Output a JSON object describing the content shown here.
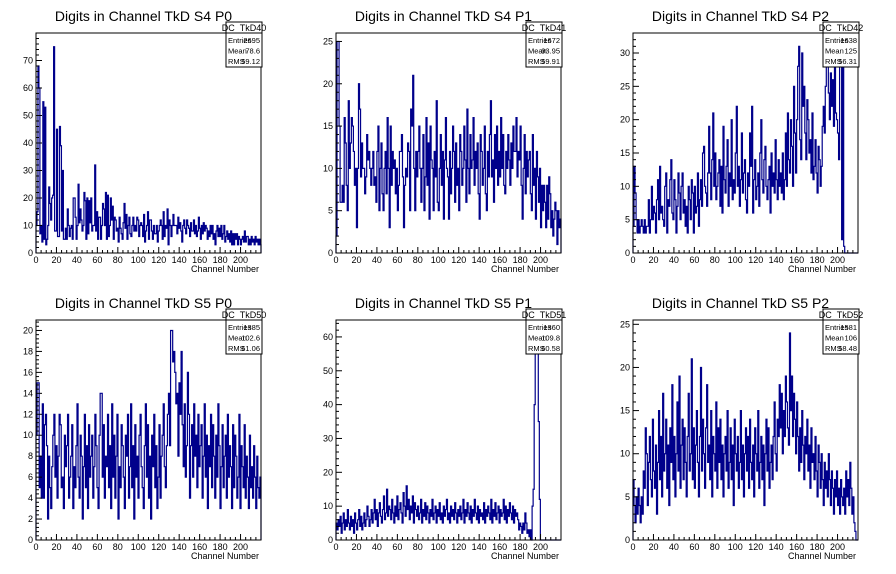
{
  "chart_data": [
    {
      "type": "histogram",
      "title": "Digits in Channel TkD S4 P0",
      "xlabel": "Channel Number",
      "xlim": [
        0,
        220
      ],
      "ylim": [
        0,
        80
      ],
      "xticks": [
        0,
        20,
        40,
        60,
        80,
        100,
        120,
        140,
        160,
        180,
        200
      ],
      "yticks": [
        0,
        10,
        20,
        30,
        40,
        50,
        60,
        70
      ],
      "color": "#00008b",
      "stats": {
        "name": "DC_TkD40",
        "entries": "2695",
        "mean": "78.6",
        "rms": "59.12"
      },
      "values": [
        10,
        15,
        68,
        60,
        7,
        10,
        4,
        55,
        5,
        53,
        3,
        5,
        10,
        24,
        18,
        12,
        20,
        21,
        75,
        8,
        8,
        45,
        6,
        6,
        46,
        39,
        8,
        30,
        5,
        5,
        9,
        5,
        16,
        10,
        6,
        9,
        10,
        5,
        20,
        20,
        13,
        5,
        10,
        25,
        11,
        16,
        12,
        8,
        10,
        22,
        19,
        5,
        20,
        7,
        19,
        11,
        20,
        8,
        10,
        10,
        32,
        8,
        15,
        5,
        13,
        13,
        5,
        10,
        18,
        16,
        10,
        22,
        5,
        21,
        6,
        10,
        20,
        12,
        17,
        5,
        13,
        12,
        8,
        9,
        4,
        13,
        9,
        7,
        5,
        11,
        18,
        9,
        14,
        5,
        10,
        13,
        7,
        6,
        10,
        13,
        8,
        10,
        8,
        13,
        12,
        6,
        10,
        11,
        10,
        6,
        14,
        4,
        8,
        10,
        15,
        5,
        12,
        12,
        8,
        5,
        10,
        7,
        7,
        10,
        4,
        8,
        10,
        12,
        10,
        5,
        15,
        6,
        10,
        9,
        16,
        3,
        12,
        10,
        6,
        10,
        14,
        10,
        10,
        10,
        7,
        13,
        9,
        11,
        8,
        4,
        10,
        12,
        9,
        7,
        12,
        10,
        9,
        6,
        11,
        8,
        8,
        12,
        7,
        10,
        6,
        8,
        13,
        9,
        5,
        10,
        7,
        11,
        8,
        10,
        9,
        5,
        8,
        6,
        10,
        7,
        10,
        5,
        7,
        3,
        8,
        10,
        6,
        9,
        6,
        10,
        5,
        7,
        10,
        4,
        6,
        8,
        5,
        7,
        4,
        8,
        3,
        7,
        3,
        7,
        5,
        7,
        3,
        6,
        5,
        3,
        5,
        6,
        4,
        8,
        4,
        6,
        6,
        3,
        5,
        3,
        6,
        4,
        5,
        3,
        6,
        4,
        5,
        3,
        5,
        3
      ]
    },
    {
      "type": "histogram",
      "title": "Digits in Channel TkD S4 P1",
      "xlabel": "Channel Number",
      "xlim": [
        0,
        220
      ],
      "ylim": [
        0,
        26
      ],
      "xticks": [
        0,
        20,
        40,
        60,
        80,
        100,
        120,
        140,
        160,
        180,
        200
      ],
      "yticks": [
        0,
        5,
        10,
        15,
        20,
        25
      ],
      "color": "#00008b",
      "stats": {
        "name": "DC_TkD41",
        "entries": "1672",
        "mean": "93.95",
        "rms": "59.91"
      },
      "values": [
        2,
        25,
        25,
        15,
        6,
        6,
        8,
        6,
        16,
        13,
        8,
        5,
        18,
        10,
        13,
        16,
        15,
        12,
        8,
        10,
        3,
        10,
        20,
        17,
        9,
        13,
        10,
        10,
        7,
        9,
        14,
        11,
        12,
        10,
        8,
        10,
        12,
        8,
        9,
        6,
        12,
        15,
        5,
        10,
        13,
        7,
        5,
        10,
        12,
        7,
        16,
        10,
        3,
        15,
        8,
        12,
        10,
        11,
        7,
        10,
        5,
        8,
        12,
        12,
        14,
        9,
        3,
        8,
        10,
        9,
        13,
        12,
        5,
        17,
        15,
        21,
        10,
        5,
        12,
        9,
        12,
        15,
        10,
        6,
        10,
        14,
        5,
        9,
        16,
        8,
        13,
        4,
        15,
        11,
        10,
        5,
        12,
        9,
        18,
        6,
        5,
        10,
        14,
        8,
        12,
        4,
        11,
        16,
        10,
        9,
        4,
        12,
        7,
        10,
        15,
        12,
        6,
        13,
        8,
        10,
        5,
        14,
        12,
        8,
        10,
        15,
        11,
        6,
        17,
        10,
        7,
        14,
        10,
        11,
        16,
        8,
        12,
        10,
        13,
        7,
        4,
        14,
        12,
        8,
        10,
        15,
        7,
        5,
        12,
        9,
        14,
        18,
        9,
        11,
        6,
        14,
        10,
        15,
        8,
        12,
        9,
        16,
        10,
        14,
        8,
        7,
        12,
        10,
        14,
        11,
        8,
        13,
        10,
        15,
        12,
        12,
        16,
        9,
        12,
        11,
        15,
        8,
        4,
        10,
        14,
        7,
        12,
        9,
        11,
        12,
        7,
        5,
        14,
        8,
        10,
        4,
        12,
        9,
        6,
        10,
        3,
        8,
        5,
        8,
        6,
        3,
        8,
        4,
        9,
        7,
        3,
        5,
        2,
        4,
        6,
        5,
        1,
        5,
        3,
        4
      ]
    },
    {
      "type": "histogram",
      "title": "Digits in Channel TkD S4 P2",
      "xlabel": "Channel Number",
      "xlim": [
        0,
        220
      ],
      "ylim": [
        0,
        33
      ],
      "xticks": [
        0,
        20,
        40,
        60,
        80,
        100,
        120,
        140,
        160,
        180,
        200
      ],
      "yticks": [
        0,
        5,
        10,
        15,
        20,
        25,
        30
      ],
      "color": "#00008b",
      "stats": {
        "name": "DC_TkD42",
        "entries": "1638",
        "mean": "125",
        "rms": "56.31"
      },
      "values": [
        4,
        13,
        9,
        5,
        3,
        5,
        3,
        4,
        5,
        4,
        3,
        5,
        3,
        4,
        4,
        8,
        3,
        5,
        10,
        5,
        7,
        6,
        3,
        8,
        11,
        5,
        13,
        6,
        7,
        5,
        4,
        10,
        12,
        3,
        8,
        7,
        11,
        14,
        6,
        5,
        11,
        8,
        3,
        7,
        12,
        9,
        5,
        10,
        12,
        6,
        8,
        4,
        7,
        3,
        10,
        8,
        5,
        11,
        9,
        3,
        10,
        6,
        7,
        12,
        4,
        8,
        11,
        7,
        15,
        16,
        10,
        9,
        7,
        12,
        19,
        12,
        8,
        14,
        21,
        10,
        15,
        8,
        10,
        12,
        14,
        7,
        13,
        6,
        19,
        11,
        9,
        13,
        17,
        7,
        12,
        10,
        20,
        8,
        11,
        9,
        15,
        22,
        10,
        13,
        7,
        11,
        18,
        9,
        12,
        14,
        8,
        6,
        12,
        10,
        18,
        13,
        22,
        6,
        11,
        14,
        8,
        10,
        12,
        7,
        15,
        20,
        11,
        9,
        14,
        16,
        10,
        8,
        11,
        13,
        6,
        15,
        10,
        12,
        9,
        17,
        11,
        8,
        14,
        10,
        12,
        9,
        15,
        8,
        11,
        18,
        10,
        21,
        14,
        12,
        20,
        16,
        10,
        25,
        18,
        12,
        20,
        28,
        31,
        17,
        14,
        30,
        22,
        25,
        18,
        14,
        23,
        20,
        15,
        17,
        12,
        21,
        11,
        13,
        17,
        12,
        9,
        16,
        14,
        10,
        13,
        19,
        22,
        18,
        25,
        31,
        30,
        24,
        20,
        27,
        22,
        26,
        19,
        30,
        21,
        20,
        18,
        14,
        28,
        31,
        2,
        30,
        1,
        0,
        0,
        0,
        0,
        0,
        0,
        0,
        0,
        0,
        0,
        0,
        0,
        0
      ]
    },
    {
      "type": "histogram",
      "title": "Digits in Channel TkD S5 P0",
      "xlabel": "Channel Number",
      "xlim": [
        0,
        220
      ],
      "ylim": [
        0,
        21
      ],
      "xticks": [
        0,
        20,
        40,
        60,
        80,
        100,
        120,
        140,
        160,
        180,
        200
      ],
      "yticks": [
        0,
        2,
        4,
        6,
        8,
        10,
        12,
        14,
        16,
        18,
        20
      ],
      "color": "#00008b",
      "stats": {
        "name": "DC_TkD50",
        "entries": "1385",
        "mean": "102.6",
        "rms": "61.06"
      },
      "values": [
        10,
        15,
        15,
        5,
        8,
        4,
        13,
        4,
        11,
        12,
        9,
        2,
        8,
        5,
        3,
        7,
        10,
        12,
        6,
        9,
        4,
        8,
        12,
        11,
        5,
        6,
        3,
        10,
        7,
        9,
        12,
        4,
        6,
        8,
        11,
        3,
        7,
        5,
        9,
        13,
        6,
        4,
        10,
        8,
        2,
        7,
        12,
        5,
        9,
        3,
        11,
        6,
        8,
        10,
        4,
        7,
        12,
        9,
        5,
        3,
        10,
        14,
        14,
        6,
        11,
        4,
        8,
        7,
        12,
        5,
        9,
        3,
        13,
        6,
        10,
        4,
        8,
        12,
        2,
        7,
        5,
        11,
        9,
        6,
        3,
        10,
        8,
        12,
        4,
        7,
        13,
        5,
        9,
        2,
        11,
        6,
        8,
        4,
        10,
        12,
        7,
        5,
        3,
        9,
        13,
        6,
        11,
        4,
        8,
        2,
        10,
        7,
        12,
        5,
        9,
        3,
        6,
        11,
        4,
        8,
        10,
        13,
        7,
        5,
        9,
        12,
        14,
        9,
        20,
        20,
        17,
        18,
        16,
        13,
        14,
        8,
        15,
        12,
        18,
        11,
        7,
        13,
        6,
        9,
        16,
        12,
        4,
        9,
        11,
        6,
        13,
        8,
        10,
        5,
        12,
        7,
        9,
        11,
        4,
        8,
        13,
        6,
        10,
        3,
        9,
        7,
        12,
        5,
        11,
        8,
        4,
        10,
        6,
        13,
        9,
        3,
        7,
        11,
        5,
        8,
        10,
        4,
        12,
        6,
        9,
        7,
        3,
        11,
        5,
        10,
        8,
        4,
        6,
        12,
        3,
        9,
        7,
        5,
        11,
        4,
        8,
        6,
        3,
        10,
        5,
        7,
        4,
        9,
        6,
        3,
        8,
        5,
        4,
        6
      ]
    },
    {
      "type": "histogram",
      "title": "Digits in Channel TkD S5 P1",
      "xlabel": "Channel Number",
      "xlim": [
        0,
        220
      ],
      "ylim": [
        0,
        65
      ],
      "xticks": [
        0,
        20,
        40,
        60,
        80,
        100,
        120,
        140,
        160,
        180,
        200
      ],
      "yticks": [
        0,
        10,
        20,
        30,
        40,
        50,
        60
      ],
      "color": "#00008b",
      "stats": {
        "name": "DC_TkD51",
        "entries": "1360",
        "mean": "109.8",
        "rms": "60.58"
      },
      "values": [
        5,
        3,
        6,
        4,
        7,
        2,
        5,
        8,
        3,
        6,
        4,
        9,
        5,
        3,
        7,
        4,
        6,
        2,
        8,
        5,
        3,
        6,
        9,
        4,
        7,
        3,
        5,
        8,
        4,
        6,
        10,
        7,
        4,
        6,
        9,
        5,
        8,
        12,
        6,
        9,
        4,
        8,
        11,
        7,
        5,
        9,
        13,
        6,
        8,
        15,
        7,
        10,
        9,
        6,
        12,
        8,
        5,
        10,
        7,
        13,
        6,
        9,
        11,
        8,
        5,
        14,
        10,
        7,
        16,
        9,
        12,
        6,
        10,
        8,
        13,
        5,
        11,
        9,
        7,
        10,
        6,
        8,
        12,
        5,
        9,
        7,
        11,
        6,
        10,
        8,
        5,
        9,
        7,
        12,
        6,
        8,
        10,
        5,
        9,
        7,
        11,
        6,
        8,
        5,
        10,
        7,
        9,
        12,
        6,
        8,
        5,
        10,
        7,
        9,
        6,
        11,
        8,
        5,
        9,
        7,
        10,
        6,
        8,
        12,
        5,
        9,
        7,
        11,
        8,
        6,
        10,
        5,
        9,
        7,
        12,
        8,
        6,
        10,
        5,
        9,
        7,
        8,
        6,
        11,
        5,
        9,
        7,
        10,
        8,
        6,
        12,
        5,
        9,
        7,
        11,
        6,
        8,
        10,
        5,
        9,
        7,
        8,
        12,
        6,
        10,
        5,
        9,
        7,
        11,
        8,
        6,
        10,
        5,
        9,
        7,
        8,
        6,
        3,
        5,
        4,
        2,
        5,
        3,
        8,
        5,
        2,
        3,
        1,
        3,
        0,
        10,
        15,
        40,
        56,
        63,
        55,
        35,
        12,
        0,
        0,
        0,
        0,
        0,
        0,
        0,
        0,
        0,
        0,
        0,
        0,
        0,
        0,
        0,
        0,
        0,
        0,
        0,
        0
      ]
    },
    {
      "type": "histogram",
      "title": "Digits in Channel TkD S5 P2",
      "xlabel": "Channel Number",
      "xlim": [
        0,
        220
      ],
      "ylim": [
        0,
        25.5
      ],
      "xticks": [
        0,
        20,
        40,
        60,
        80,
        100,
        120,
        140,
        160,
        180,
        200
      ],
      "yticks": [
        0,
        5,
        10,
        15,
        20,
        25
      ],
      "color": "#00008b",
      "stats": {
        "name": "DC_TkD52",
        "entries": "1581",
        "mean": "106",
        "rms": "58.48"
      },
      "values": [
        7,
        4,
        2,
        5,
        3,
        6,
        4,
        2,
        5,
        3,
        8,
        6,
        13,
        10,
        4,
        9,
        12,
        7,
        5,
        14,
        8,
        6,
        11,
        3,
        9,
        15,
        7,
        12,
        5,
        17,
        8,
        10,
        14,
        6,
        11,
        4,
        13,
        9,
        18,
        7,
        12,
        5,
        10,
        16,
        8,
        19,
        6,
        11,
        14,
        7,
        13,
        9,
        5,
        12,
        17,
        8,
        10,
        21,
        7,
        13,
        6,
        11,
        15,
        9,
        5,
        12,
        20,
        8,
        14,
        10,
        6,
        13,
        18,
        9,
        11,
        7,
        15,
        5,
        12,
        10,
        8,
        16,
        6,
        13,
        9,
        14,
        7,
        11,
        5,
        10,
        12,
        8,
        15,
        6,
        9,
        13,
        7,
        11,
        4,
        14,
        10,
        8,
        12,
        6,
        9,
        15,
        7,
        11,
        5,
        10,
        13,
        8,
        12,
        6,
        14,
        9,
        7,
        11,
        5,
        13,
        10,
        8,
        15,
        6,
        9,
        12,
        7,
        11,
        4,
        10,
        14,
        8,
        13,
        6,
        9,
        11,
        7,
        12,
        16,
        10,
        8,
        14,
        12,
        18,
        13,
        17,
        10,
        15,
        12,
        19,
        16,
        13,
        11,
        24,
        15,
        19,
        12,
        17,
        14,
        10,
        16,
        12,
        8,
        13,
        9,
        15,
        11,
        7,
        12,
        10,
        14,
        8,
        11,
        6,
        13,
        9,
        10,
        7,
        12,
        8,
        5,
        11,
        9,
        6,
        10,
        7,
        4,
        9,
        6,
        8,
        5,
        10,
        7,
        4,
        8,
        6,
        3,
        7,
        5,
        8,
        4,
        6,
        3,
        7,
        5,
        4,
        6,
        3,
        8,
        5,
        7,
        4,
        9,
        6,
        3,
        5,
        2,
        1,
        0,
        0
      ]
    }
  ]
}
